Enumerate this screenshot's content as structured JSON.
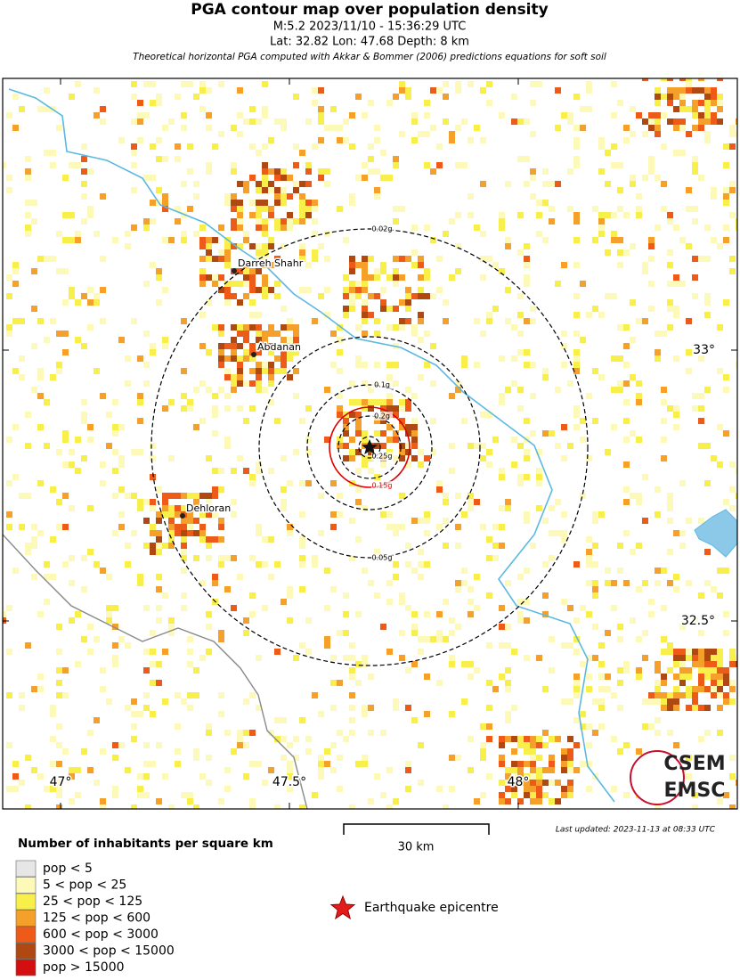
{
  "header": {
    "title": "PGA contour map over population density",
    "subtitle": "M:5.2 2023/11/10 - 15:36:29 UTC",
    "location": "Lat: 32.82 Lon: 47.68 Depth: 8 km",
    "note": "Theoretical horizontal PGA computed with Akkar & Bommer (2006) predictions equations for soft soil"
  },
  "map": {
    "cities": [
      {
        "name": "Darreh Shahr"
      },
      {
        "name": "Abdanan"
      },
      {
        "name": "Dehloran"
      }
    ],
    "contours": [
      {
        "label": "0.02g",
        "color": "#000000"
      },
      {
        "label": "0.05g",
        "color": "#000000"
      },
      {
        "label": "0.1g",
        "color": "#000000"
      },
      {
        "label": "0.15g",
        "color": "#dd0000"
      },
      {
        "label": "0.2g",
        "color": "#000000"
      },
      {
        "label": "0.25g",
        "color": "#000000"
      }
    ],
    "lat_labels": [
      "33°",
      "32.5°"
    ],
    "lon_labels": [
      "47°",
      "47.5°",
      "48°"
    ],
    "logo": [
      "CSEM",
      "EMSC"
    ]
  },
  "scale": {
    "label": "30 km"
  },
  "updated": "Last updated: 2023-11-13 at 08:33 UTC",
  "legend": {
    "title": "Number of inhabitants per square km",
    "items": [
      {
        "label": "pop < 5",
        "color": "#e6e6e6"
      },
      {
        "label": "5 < pop < 25",
        "color": "#fdf9b8"
      },
      {
        "label": "25 < pop < 125",
        "color": "#f8ef4a"
      },
      {
        "label": "125 < pop < 600",
        "color": "#f6a02c"
      },
      {
        "label": "600 < pop < 3000",
        "color": "#ee5a18"
      },
      {
        "label": "3000 < pop < 15000",
        "color": "#b04812"
      },
      {
        "label": "pop > 15000",
        "color": "#d40f0f"
      }
    ],
    "epicentre": "Earthquake epicentre"
  }
}
